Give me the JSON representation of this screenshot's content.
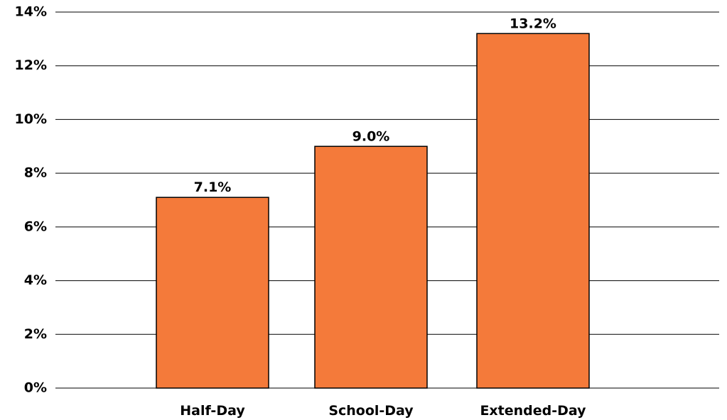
{
  "chart_data": {
    "type": "bar",
    "categories": [
      "Half-Day",
      "School-Day",
      "Extended-Day"
    ],
    "values": [
      7.1,
      9.0,
      13.2
    ],
    "data_labels": [
      "7.1%",
      "9.0%",
      "13.2%"
    ],
    "title": "",
    "xlabel": "",
    "ylabel": "",
    "ylim": [
      0,
      14
    ],
    "yticks": [
      "0%",
      "2%",
      "4%",
      "6%",
      "8%",
      "10%",
      "12%",
      "14%"
    ],
    "grid": true,
    "legend": "none",
    "bar_color": "#F47A3A"
  }
}
